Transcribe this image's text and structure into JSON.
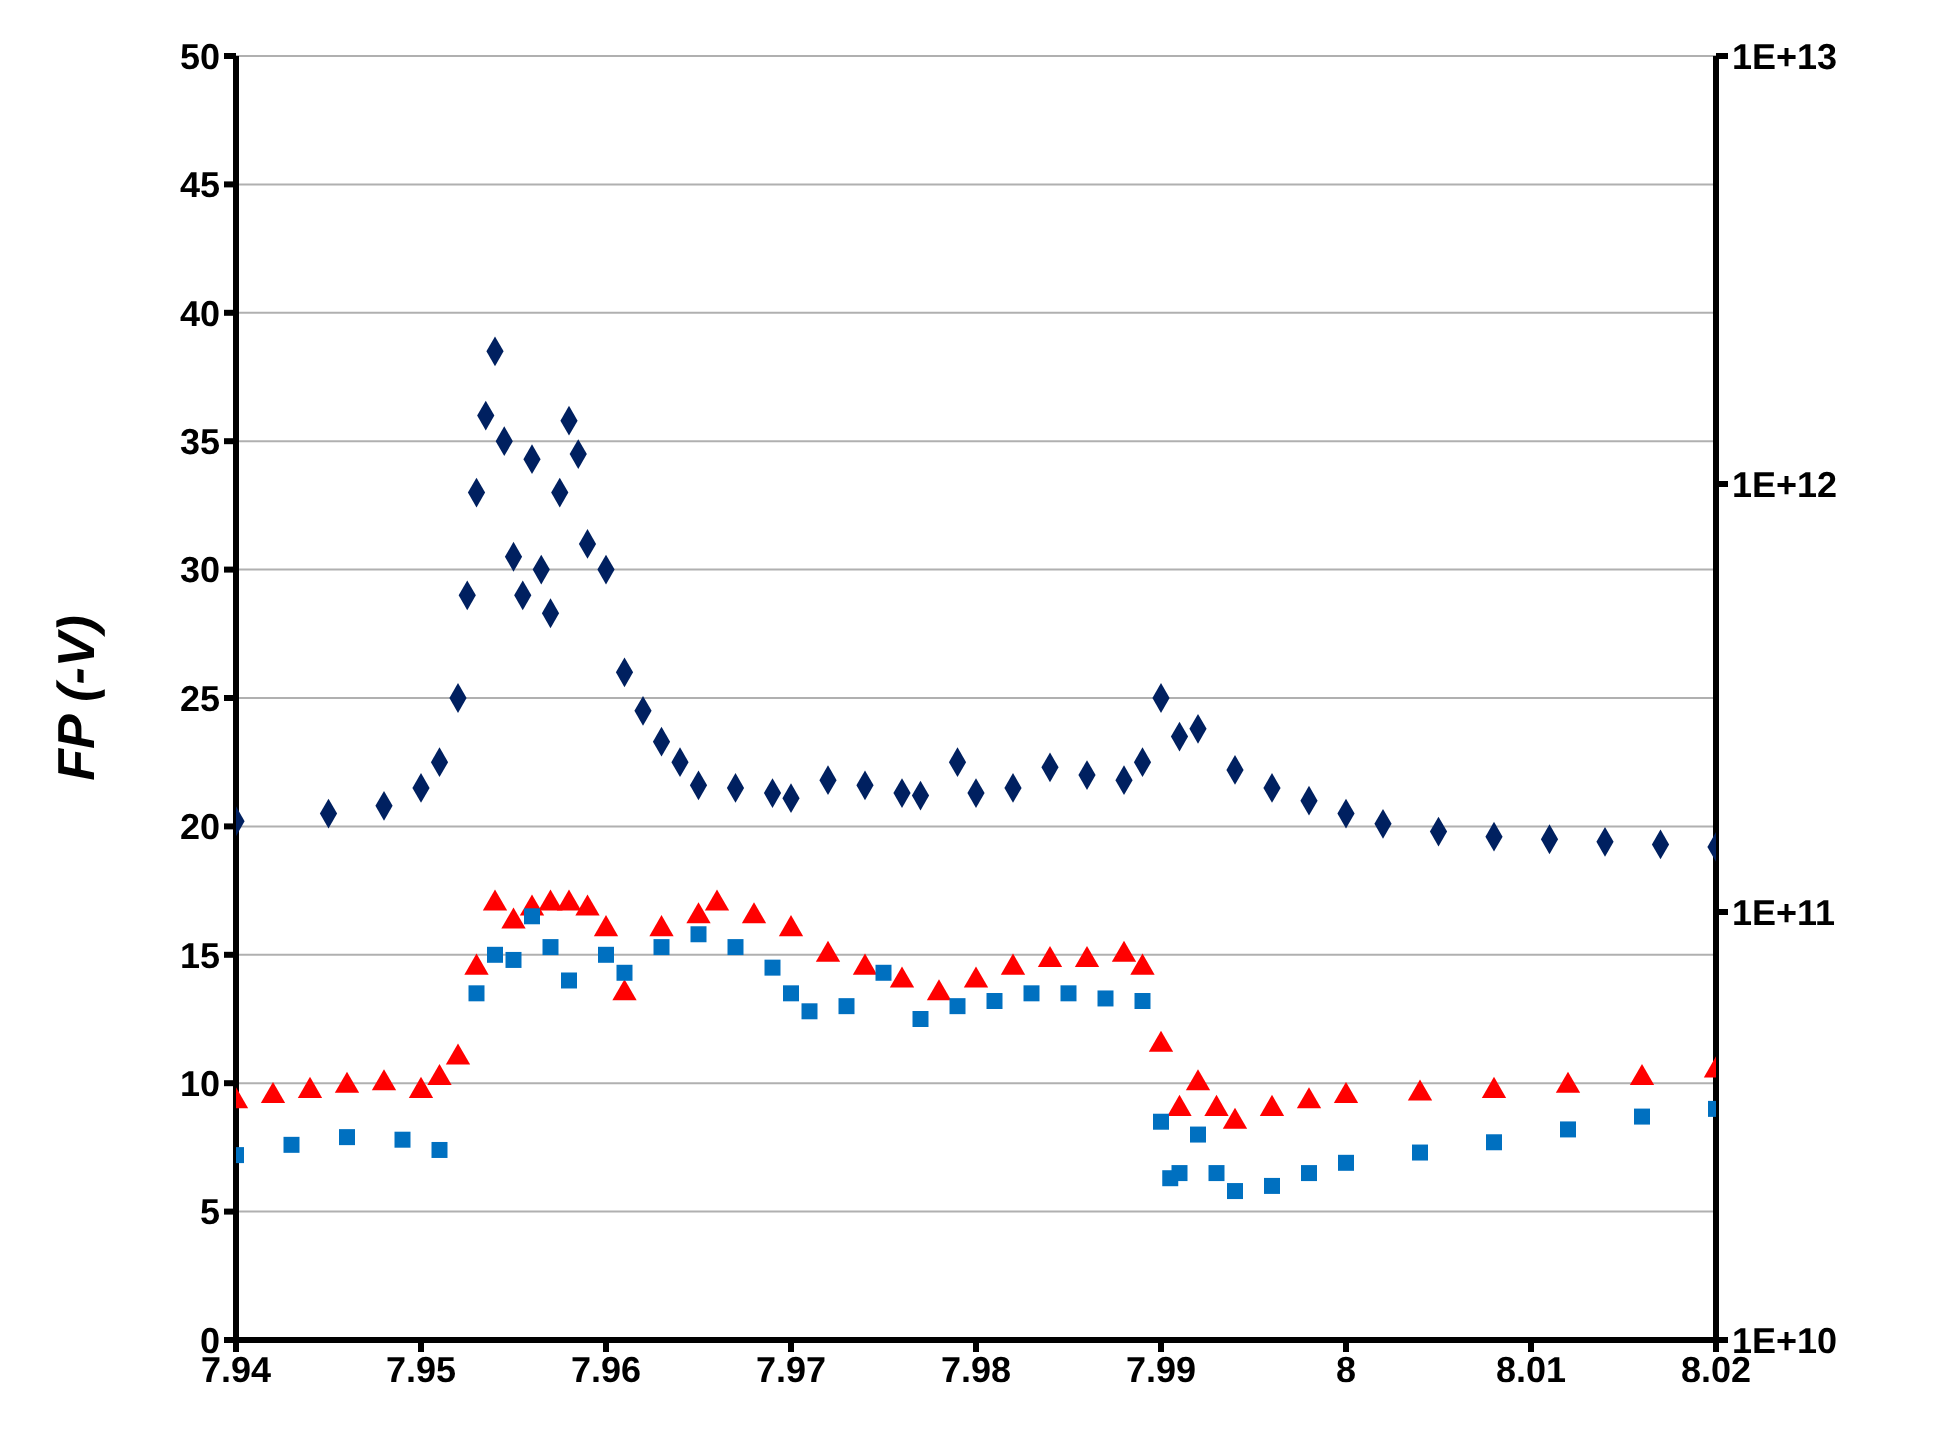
{
  "chart_data": {
    "type": "scatter",
    "ylabel": "FP (-V)",
    "xlim": [
      7.94,
      8.02
    ],
    "xticks": [
      7.94,
      7.95,
      7.96,
      7.97,
      7.98,
      7.99,
      8,
      8.01,
      8.02
    ],
    "ylim": [
      0,
      50
    ],
    "yticks": [
      0,
      5,
      10,
      15,
      20,
      25,
      30,
      35,
      40,
      45,
      50
    ],
    "y2lim": [
      10000000000.0,
      10000000000000.0
    ],
    "y2ticks": [
      {
        "value": 10000000000.0,
        "label": "1E+10"
      },
      {
        "value": 100000000000.0,
        "label": "1E+11"
      },
      {
        "value": 1000000000000.0,
        "label": "1E+12"
      },
      {
        "value": 10000000000000.0,
        "label": "1E+13"
      }
    ],
    "log": "y2",
    "grid": "y",
    "legend": false,
    "series": [
      {
        "color": "#002060",
        "marker": "diamond",
        "x": [
          7.94,
          7.945,
          7.948,
          7.95,
          7.951,
          7.952,
          7.9525,
          7.953,
          7.9535,
          7.954,
          7.9545,
          7.955,
          7.9555,
          7.956,
          7.9565,
          7.957,
          7.9575,
          7.958,
          7.9585,
          7.959,
          7.96,
          7.961,
          7.962,
          7.963,
          7.964,
          7.965,
          7.967,
          7.969,
          7.97,
          7.972,
          7.974,
          7.976,
          7.977,
          7.979,
          7.98,
          7.982,
          7.984,
          7.986,
          7.988,
          7.989,
          7.99,
          7.991,
          7.992,
          7.994,
          7.996,
          7.998,
          8,
          8.002,
          8.005,
          8.008,
          8.011,
          8.014,
          8.017,
          8.02
        ],
        "values": [
          20.2,
          20.5,
          20.8,
          21.5,
          22.5,
          25,
          29,
          33,
          36,
          38.5,
          35,
          30.5,
          29,
          34.3,
          30,
          28.3,
          33,
          35.8,
          34.5,
          31,
          30,
          26,
          24.5,
          23.3,
          22.5,
          21.6,
          21.5,
          21.3,
          21.1,
          21.8,
          21.6,
          21.3,
          21.2,
          22.5,
          21.3,
          21.5,
          22.3,
          22,
          21.8,
          22.5,
          25,
          23.5,
          23.8,
          22.2,
          21.5,
          21,
          20.5,
          20.1,
          19.8,
          19.6,
          19.5,
          19.4,
          19.3,
          19.2
        ]
      },
      {
        "color": "#ff0000",
        "marker": "triangle",
        "x": [
          7.94,
          7.942,
          7.944,
          7.946,
          7.948,
          7.95,
          7.951,
          7.952,
          7.953,
          7.954,
          7.955,
          7.956,
          7.957,
          7.958,
          7.959,
          7.96,
          7.961,
          7.963,
          7.965,
          7.966,
          7.968,
          7.97,
          7.972,
          7.974,
          7.976,
          7.978,
          7.98,
          7.982,
          7.984,
          7.986,
          7.988,
          7.989,
          7.99,
          7.991,
          7.992,
          7.993,
          7.994,
          7.996,
          7.998,
          8,
          8.004,
          8.008,
          8.012,
          8.016,
          8.02
        ],
        "values": [
          9.3,
          9.5,
          9.7,
          9.9,
          10,
          9.7,
          10.2,
          11,
          14.5,
          17,
          16.3,
          16.8,
          17,
          17,
          16.8,
          16,
          13.5,
          16,
          16.5,
          17,
          16.5,
          16,
          15,
          14.5,
          14,
          13.5,
          14,
          14.5,
          14.8,
          14.8,
          15,
          14.5,
          11.5,
          9,
          10,
          9,
          8.5,
          9,
          9.3,
          9.5,
          9.6,
          9.7,
          9.9,
          10.2,
          10.5
        ]
      },
      {
        "color": "#0070c0",
        "marker": "square",
        "x": [
          7.94,
          7.943,
          7.946,
          7.949,
          7.951,
          7.953,
          7.954,
          7.955,
          7.956,
          7.957,
          7.958,
          7.96,
          7.961,
          7.963,
          7.965,
          7.967,
          7.969,
          7.97,
          7.971,
          7.973,
          7.975,
          7.977,
          7.979,
          7.981,
          7.983,
          7.985,
          7.987,
          7.989,
          7.99,
          7.9905,
          7.991,
          7.992,
          7.993,
          7.994,
          7.996,
          7.998,
          8,
          8.004,
          8.008,
          8.012,
          8.016,
          8.02
        ],
        "values": [
          7.2,
          7.6,
          7.9,
          7.8,
          7.4,
          13.5,
          15,
          14.8,
          16.5,
          15.3,
          14,
          15,
          14.3,
          15.3,
          15.8,
          15.3,
          14.5,
          13.5,
          12.8,
          13,
          14.3,
          12.5,
          13,
          13.2,
          13.5,
          13.5,
          13.3,
          13.2,
          8.5,
          6.3,
          6.5,
          8,
          6.5,
          5.8,
          6,
          6.5,
          6.9,
          7.3,
          7.7,
          8.2,
          8.7,
          9
        ]
      }
    ]
  }
}
